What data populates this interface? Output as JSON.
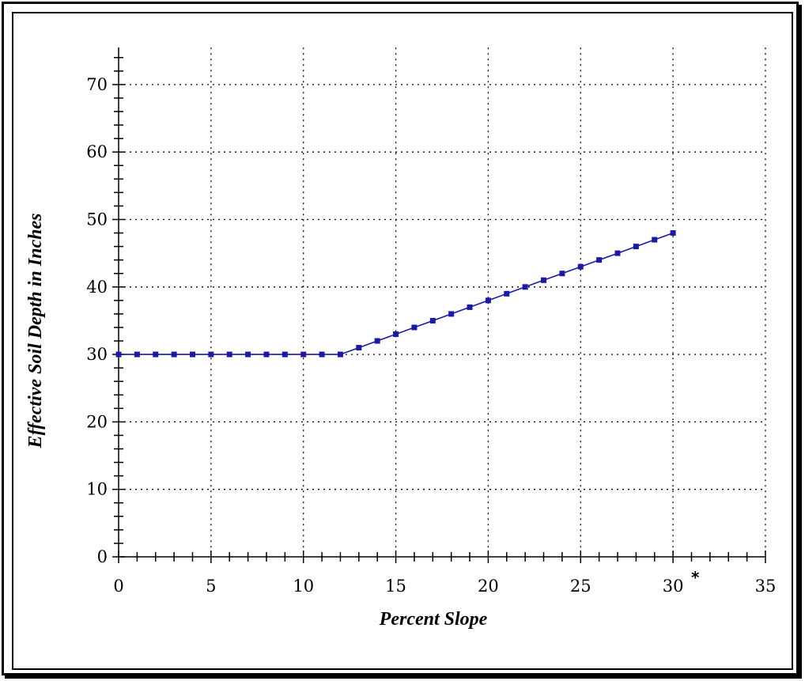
{
  "chart_data": {
    "type": "line",
    "title": "",
    "xlabel": "Percent Slope",
    "ylabel": "Effective Soil Depth in Inches",
    "xlim": [
      0,
      35
    ],
    "ylim": [
      0,
      75
    ],
    "x_ticks": [
      "0",
      "5",
      "10",
      "15",
      "20",
      "25",
      "30",
      "35"
    ],
    "y_ticks": [
      "0",
      "10",
      "20",
      "30",
      "40",
      "50",
      "60",
      "70"
    ],
    "grid": true,
    "footnote_marker": "*",
    "series": [
      {
        "color": "#1a1aa6",
        "x": [
          0,
          1,
          2,
          3,
          4,
          5,
          6,
          7,
          8,
          9,
          10,
          11,
          12,
          13,
          14,
          15,
          16,
          17,
          18,
          19,
          20,
          21,
          22,
          23,
          24,
          25,
          26,
          27,
          28,
          29,
          30
        ],
        "y": [
          30,
          30,
          30,
          30,
          30,
          30,
          30,
          30,
          30,
          30,
          30,
          30,
          30,
          31,
          32,
          33,
          34,
          35,
          36,
          37,
          38,
          39,
          40,
          41,
          42,
          43,
          44,
          45,
          46,
          47,
          48
        ]
      }
    ]
  }
}
